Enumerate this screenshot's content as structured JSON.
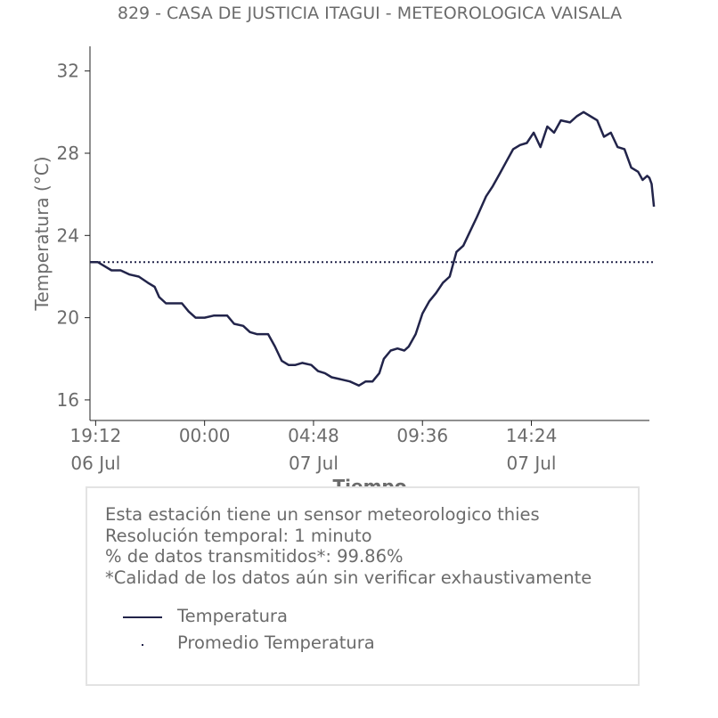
{
  "chart_data": {
    "type": "line",
    "title": "829 - CASA DE JUSTICIA ITAGUI - METEOROLOGICA VAISALA",
    "xlabel": "Tiempo",
    "ylabel": "Temperatura (°C)",
    "ylim": [
      15.0,
      33.2
    ],
    "xlim": [
      18.95,
      43.6
    ],
    "grid": false,
    "y_ticks": [
      16,
      20,
      24,
      28,
      32
    ],
    "x_ticks": [
      {
        "value": 19.2,
        "label_time": "19:12",
        "label_date": "06 Jul"
      },
      {
        "value": 24.0,
        "label_time": "00:00",
        "label_date": ""
      },
      {
        "value": 28.8,
        "label_time": "04:48",
        "label_date": "07 Jul"
      },
      {
        "value": 33.6,
        "label_time": "09:36",
        "label_date": ""
      },
      {
        "value": 38.4,
        "label_time": "14:24",
        "label_date": "07 Jul"
      }
    ],
    "series": [
      {
        "name": "Temperatura",
        "color": "#22244a",
        "style": "solid",
        "points": [
          [
            18.95,
            22.7
          ],
          [
            19.3,
            22.7
          ],
          [
            19.6,
            22.5
          ],
          [
            19.9,
            22.3
          ],
          [
            20.3,
            22.3
          ],
          [
            20.7,
            22.1
          ],
          [
            21.1,
            22.0
          ],
          [
            21.5,
            21.7
          ],
          [
            21.8,
            21.5
          ],
          [
            22.0,
            21.0
          ],
          [
            22.3,
            20.7
          ],
          [
            22.7,
            20.7
          ],
          [
            23.0,
            20.7
          ],
          [
            23.3,
            20.3
          ],
          [
            23.6,
            20.0
          ],
          [
            24.0,
            20.0
          ],
          [
            24.4,
            20.1
          ],
          [
            25.0,
            20.1
          ],
          [
            25.3,
            19.7
          ],
          [
            25.7,
            19.6
          ],
          [
            26.0,
            19.3
          ],
          [
            26.3,
            19.2
          ],
          [
            26.8,
            19.2
          ],
          [
            27.1,
            18.6
          ],
          [
            27.4,
            17.9
          ],
          [
            27.7,
            17.7
          ],
          [
            28.0,
            17.7
          ],
          [
            28.3,
            17.8
          ],
          [
            28.7,
            17.7
          ],
          [
            29.0,
            17.4
          ],
          [
            29.3,
            17.3
          ],
          [
            29.6,
            17.1
          ],
          [
            30.0,
            17.0
          ],
          [
            30.4,
            16.9
          ],
          [
            30.6,
            16.8
          ],
          [
            30.8,
            16.7
          ],
          [
            31.1,
            16.9
          ],
          [
            31.4,
            16.9
          ],
          [
            31.7,
            17.3
          ],
          [
            31.9,
            18.0
          ],
          [
            32.2,
            18.4
          ],
          [
            32.5,
            18.5
          ],
          [
            32.8,
            18.4
          ],
          [
            33.0,
            18.6
          ],
          [
            33.3,
            19.2
          ],
          [
            33.6,
            20.2
          ],
          [
            33.9,
            20.8
          ],
          [
            34.2,
            21.2
          ],
          [
            34.5,
            21.7
          ],
          [
            34.8,
            22.0
          ],
          [
            35.1,
            23.2
          ],
          [
            35.4,
            23.5
          ],
          [
            35.7,
            24.2
          ],
          [
            36.0,
            24.9
          ],
          [
            36.4,
            25.9
          ],
          [
            36.7,
            26.4
          ],
          [
            37.0,
            27.0
          ],
          [
            37.3,
            27.6
          ],
          [
            37.6,
            28.2
          ],
          [
            37.9,
            28.4
          ],
          [
            38.2,
            28.5
          ],
          [
            38.5,
            29.0
          ],
          [
            38.8,
            28.3
          ],
          [
            39.1,
            29.3
          ],
          [
            39.4,
            29.0
          ],
          [
            39.7,
            29.6
          ],
          [
            40.1,
            29.5
          ],
          [
            40.4,
            29.8
          ],
          [
            40.7,
            30.0
          ],
          [
            41.0,
            29.8
          ],
          [
            41.3,
            29.6
          ],
          [
            41.6,
            28.8
          ],
          [
            41.9,
            29.0
          ],
          [
            42.2,
            28.3
          ],
          [
            42.5,
            28.2
          ],
          [
            42.8,
            27.3
          ],
          [
            43.1,
            27.1
          ],
          [
            43.3,
            26.7
          ],
          [
            43.5,
            26.9
          ],
          [
            43.6,
            26.8
          ],
          [
            43.7,
            26.5
          ],
          [
            43.8,
            25.4
          ]
        ]
      },
      {
        "name": "Promedio Temperatura",
        "color": "#22244a",
        "style": "dotted",
        "points": [
          [
            18.95,
            22.7
          ],
          [
            43.8,
            22.7
          ]
        ]
      }
    ]
  },
  "info": {
    "lines": [
      "Esta estación tiene un sensor meteorologico thies",
      "Resolución temporal: 1 minuto",
      "% de datos transmitidos*: 99.86%",
      "*Calidad de los datos aún sin verificar exhaustivamente"
    ]
  },
  "legend": {
    "items": [
      {
        "label": "Temperatura",
        "style": "solid"
      },
      {
        "label": "Promedio Temperatura",
        "style": "dotted"
      }
    ]
  }
}
